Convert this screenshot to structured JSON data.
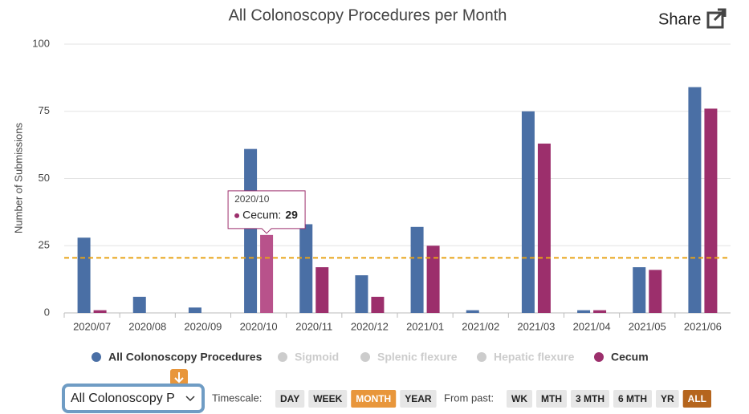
{
  "chart_data": {
    "type": "bar",
    "title": "All Colonoscopy Procedures per Month",
    "y_label": "Number of Submissions",
    "categories": [
      "2020/07",
      "2020/08",
      "2020/09",
      "2020/10",
      "2020/11",
      "2020/12",
      "2021/01",
      "2021/02",
      "2021/03",
      "2021/04",
      "2021/05",
      "2021/06"
    ],
    "series": [
      {
        "name": "All Colonoscopy Procedures",
        "color": "#4a6fa5",
        "values": [
          28,
          6,
          2,
          61,
          33,
          14,
          32,
          1,
          75,
          1,
          17,
          84
        ]
      },
      {
        "name": "Cecum",
        "color": "#9c2f6c",
        "values": [
          1,
          0,
          0,
          29,
          17,
          6,
          25,
          0,
          63,
          1,
          16,
          76
        ]
      }
    ],
    "hidden_series": [
      "Sigmoid",
      "Splenic flexure",
      "Hepatic flexure"
    ],
    "reference_line": 20.5,
    "reference_color": "#e8a317",
    "ylim": [
      0,
      100
    ],
    "yticks": [
      0,
      25,
      50,
      75,
      100
    ],
    "grid": true,
    "tooltip": {
      "title": "2020/10",
      "label": "Cecum:",
      "value": 29,
      "series": 1,
      "index": 3
    }
  },
  "ui": {
    "share": "Share",
    "dropdown": "All Colonoscopy P",
    "timescale_label": "Timescale:",
    "timescale": [
      "DAY",
      "WEEK",
      "MONTH",
      "YEAR"
    ],
    "timescale_active": 2,
    "from_past_label": "From past:",
    "from_past": [
      "WK",
      "MTH",
      "3 MTH",
      "6 MTH",
      "YR",
      "ALL"
    ],
    "from_past_active": 5
  }
}
